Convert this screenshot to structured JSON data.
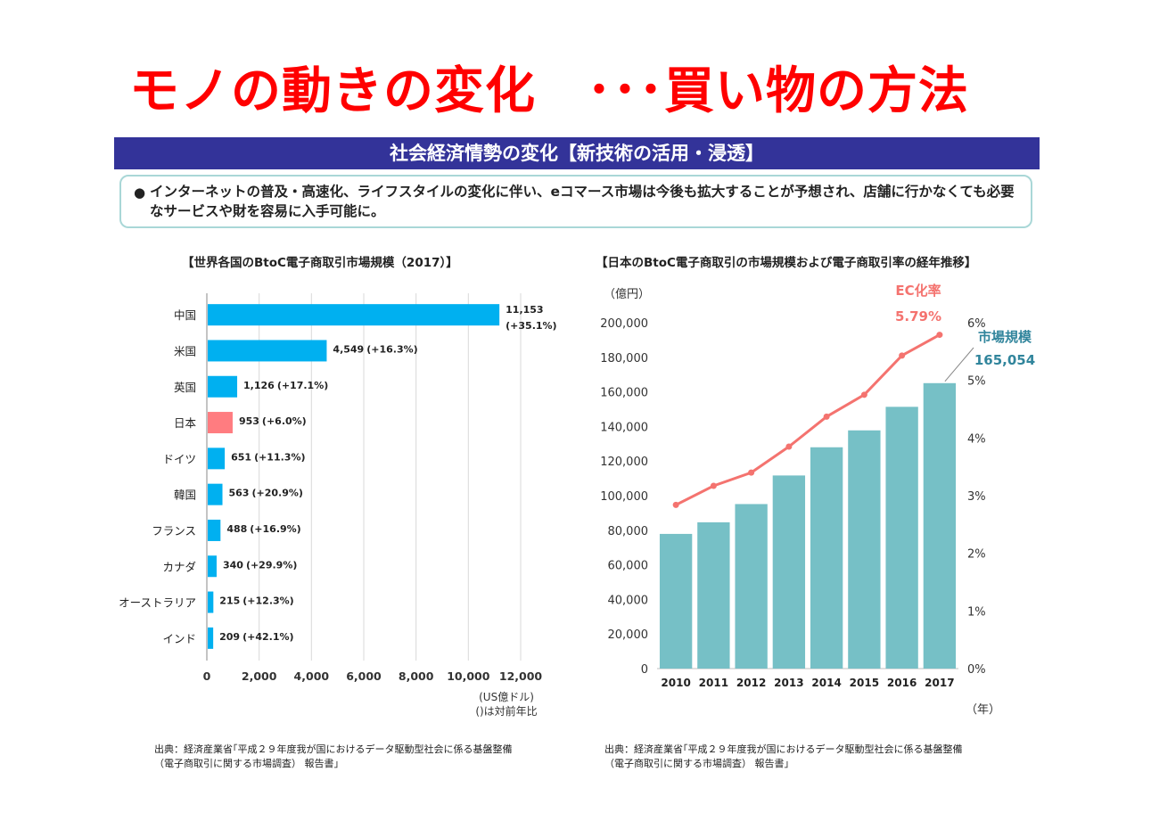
{
  "page": {
    "title": "モノの動きの変化　･･･買い物の方法",
    "banner": "社会経済情勢の変化【新技術の活用・浸透】",
    "note": {
      "bullet": "●",
      "text": "インターネットの普及・高速化、ライフスタイルの変化に伴い、eコマース市場は今後も拡大することが予想され、店舗に行かなくても必要なサービスや財を容易に入手可能に。"
    },
    "colors": {
      "title": "#ff0000",
      "banner": "#333399",
      "bar_blue": "#00b0f0",
      "bar_japan": "#ff7c80",
      "bar_teal": "#76c0c6",
      "line": "#f4736f"
    }
  },
  "chart_data": [
    {
      "type": "bar",
      "orientation": "horizontal",
      "title": "【世界各国のBtoC電子商取引市場規模（2017）】",
      "categories": [
        "中国",
        "米国",
        "英国",
        "日本",
        "ドイツ",
        "韓国",
        "フランス",
        "カナダ",
        "オーストラリア",
        "インド"
      ],
      "values": [
        11153,
        4549,
        1126,
        953,
        651,
        563,
        488,
        340,
        215,
        209
      ],
      "value_labels": [
        "11,153",
        "4,549",
        "1,126",
        "953",
        "651",
        "563",
        "488",
        "340",
        "215",
        "209"
      ],
      "growth_labels": [
        "(+35.1%)",
        "(+16.3%)",
        "(+17.1%)",
        "(+6.0%)",
        "(+11.3%)",
        "(+20.9%)",
        "(+16.9%)",
        "(+29.9%)",
        "(+12.3%)",
        "(+42.1%)"
      ],
      "highlight": "日本",
      "xlim": [
        0,
        12000
      ],
      "xticks": [
        "0",
        "2,000",
        "4,000",
        "6,000",
        "8,000",
        "10,000",
        "12,000"
      ],
      "unit_note": [
        "(US億ドル)",
        "()は対前年比"
      ],
      "source": "出典：経済産業省｢平成２９年度我が国におけるデータ駆動型社会に係る基盤整備\n（電子商取引に関する市場調査） 報告書｣"
    },
    {
      "type": "bar+line",
      "title": "【日本のBtoC電子商取引の市場規模および電子商取引率の経年推移】",
      "x": [
        "2010",
        "2011",
        "2012",
        "2013",
        "2014",
        "2015",
        "2016",
        "2017"
      ],
      "series": [
        {
          "name": "市場規模",
          "type": "bar",
          "axis": "left",
          "values": [
            77880,
            84590,
            95130,
            111660,
            127970,
            137746,
            151358,
            165054
          ]
        },
        {
          "name": "EC化率",
          "type": "line",
          "axis": "right",
          "values": [
            2.84,
            3.17,
            3.4,
            3.85,
            4.37,
            4.75,
            5.43,
            5.79
          ]
        }
      ],
      "annotations": {
        "line_name": "EC化率",
        "line_value": "5.79%",
        "bar_name": "市場規模",
        "bar_value": "165,054"
      },
      "ylim_left": [
        0,
        200000
      ],
      "yticks_left": [
        "0",
        "20,000",
        "40,000",
        "60,000",
        "80,000",
        "100,000",
        "120,000",
        "140,000",
        "160,000",
        "180,000",
        "200,000"
      ],
      "ylim_right": [
        0,
        6
      ],
      "yticks_right": [
        "0%",
        "1%",
        "2%",
        "3%",
        "4%",
        "5%",
        "6%"
      ],
      "ylabel_left": "（億円）",
      "xlabel": "（年）",
      "source": "出典：経済産業省｢平成２９年度我が国におけるデータ駆動型社会に係る基盤整備\n（電子商取引に関する市場調査） 報告書｣"
    }
  ]
}
